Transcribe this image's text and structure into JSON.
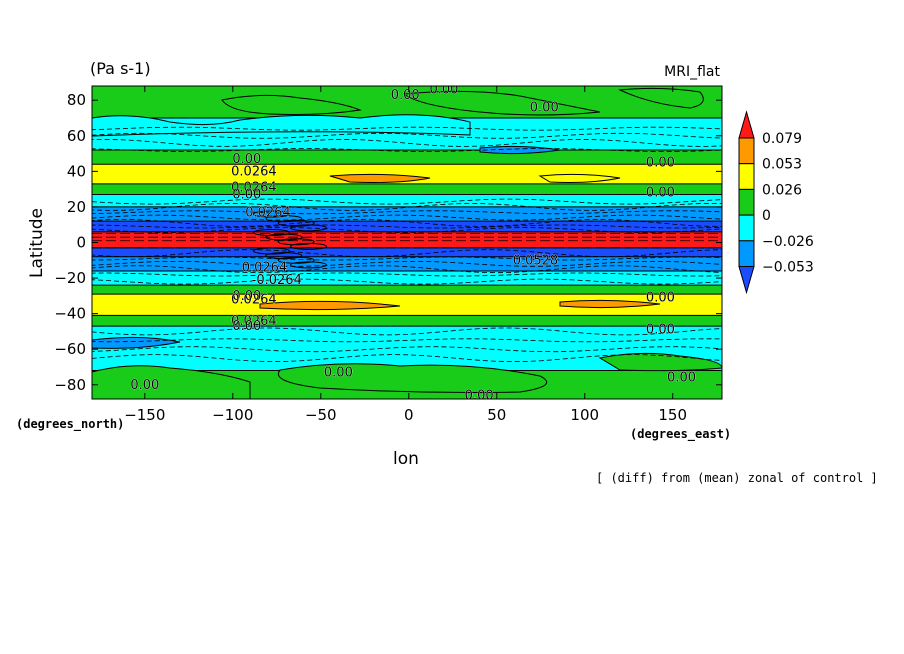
{
  "chart_data": {
    "type": "heatmap",
    "title": "MRI_flat",
    "units_label": "(Pa s-1)",
    "xlabel": "lon",
    "ylabel": "Latitude",
    "x_units": "(degrees_east)",
    "y_units": "(degrees_north)",
    "caption": "[ (diff) from (mean) zonal of control ]",
    "xlim": [
      -180,
      178
    ],
    "ylim": [
      -88,
      88
    ],
    "x_ticks": [
      -150,
      -100,
      -50,
      0,
      50,
      100,
      150
    ],
    "x_tick_labels": [
      "−150",
      "−100",
      "−50",
      "0",
      "50",
      "100",
      "150"
    ],
    "y_ticks": [
      80,
      60,
      40,
      20,
      0,
      -20,
      -40,
      -60,
      -80
    ],
    "y_tick_labels": [
      "80",
      "60",
      "40",
      "20",
      "0",
      "−20",
      "−40",
      "−60",
      "−80"
    ],
    "colorbar": {
      "levels": [
        0.079,
        0.053,
        0.026,
        0,
        -0.026,
        -0.053
      ],
      "labels": [
        "0.079",
        "0.053",
        "0.026",
        "0",
        "−0.026",
        "−0.053"
      ],
      "colors": {
        "above_0_079": "#ff1a1a",
        "r_0_053_0_079": "#ff9900",
        "r_0_026_0_053": "#ffff00",
        "r_0_0_026": "#19cc19",
        "r_m0_026_0": "#00ffff",
        "r_m0_053_m0_026": "#0099ff",
        "below_m0_053": "#1a4dff"
      }
    },
    "bands": [
      {
        "lat_min": 70,
        "lat_max": 88,
        "class": "r_0_0_026"
      },
      {
        "lat_min": 52,
        "lat_max": 70,
        "class": "r_m0_026_0"
      },
      {
        "lat_min": 44,
        "lat_max": 52,
        "class": "r_0_0_026"
      },
      {
        "lat_min": 33,
        "lat_max": 44,
        "class": "r_0_026_0_053"
      },
      {
        "lat_min": 27,
        "lat_max": 33,
        "class": "r_0_0_026"
      },
      {
        "lat_min": 20,
        "lat_max": 27,
        "class": "r_m0_026_0"
      },
      {
        "lat_min": 12,
        "lat_max": 20,
        "class": "r_m0_053_m0_026"
      },
      {
        "lat_min": 6,
        "lat_max": 12,
        "class": "below_m0_053"
      },
      {
        "lat_min": -3,
        "lat_max": 6,
        "class": "above_0_079"
      },
      {
        "lat_min": -8,
        "lat_max": -3,
        "class": "below_m0_053"
      },
      {
        "lat_min": -16,
        "lat_max": -8,
        "class": "r_m0_053_m0_026"
      },
      {
        "lat_min": -24,
        "lat_max": -16,
        "class": "r_m0_026_0"
      },
      {
        "lat_min": -29,
        "lat_max": -24,
        "class": "r_0_0_026"
      },
      {
        "lat_min": -41,
        "lat_max": -29,
        "class": "r_0_026_0_053"
      },
      {
        "lat_min": -47,
        "lat_max": -41,
        "class": "r_0_0_026"
      },
      {
        "lat_min": -72,
        "lat_max": -47,
        "class": "r_m0_026_0"
      },
      {
        "lat_min": -88,
        "lat_max": -72,
        "class": "r_0_0_026"
      }
    ],
    "contour_labels": [
      {
        "text": "0.00",
        "lon": -2,
        "lat": 83
      },
      {
        "text": "0.00",
        "lon": 20,
        "lat": 86
      },
      {
        "text": "0.00",
        "lon": 77,
        "lat": 76
      },
      {
        "text": "0.00",
        "lon": -92,
        "lat": 47
      },
      {
        "text": "0.0264",
        "lon": -88,
        "lat": 40
      },
      {
        "text": "0.0264",
        "lon": -88,
        "lat": 31
      },
      {
        "text": "0.00",
        "lon": -92,
        "lat": 27
      },
      {
        "text": "0.00",
        "lon": 143,
        "lat": 45
      },
      {
        "text": "0.00",
        "lon": 143,
        "lat": 28
      },
      {
        "text": "0.0264",
        "lon": -80,
        "lat": 17
      },
      {
        "text": "0.0264",
        "lon": -82,
        "lat": -14
      },
      {
        "text": "-0.0264",
        "lon": -75,
        "lat": -21
      },
      {
        "text": "0.0528",
        "lon": 72,
        "lat": -10
      },
      {
        "text": "0.00",
        "lon": -92,
        "lat": -30
      },
      {
        "text": "0.0264",
        "lon": -88,
        "lat": -32
      },
      {
        "text": "0.0264",
        "lon": -88,
        "lat": -44
      },
      {
        "text": "0.00",
        "lon": -92,
        "lat": -47
      },
      {
        "text": "0.00",
        "lon": 143,
        "lat": -31
      },
      {
        "text": "0.00",
        "lon": 143,
        "lat": -49
      },
      {
        "text": "0.00",
        "lon": -40,
        "lat": -73
      },
      {
        "text": "0.00",
        "lon": -150,
        "lat": -80
      },
      {
        "text": "0.00",
        "lon": 40,
        "lat": -86
      },
      {
        "text": "0.00",
        "lon": 155,
        "lat": -76
      }
    ]
  }
}
